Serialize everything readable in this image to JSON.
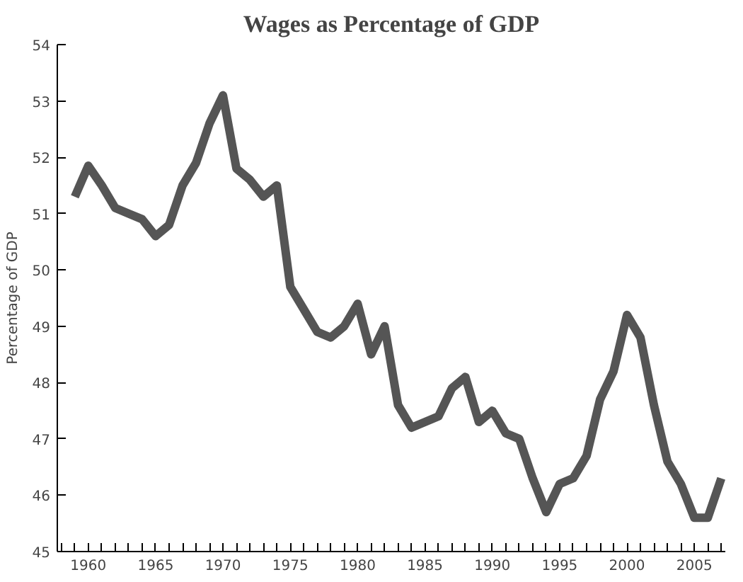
{
  "chart_data": {
    "type": "line",
    "title": "Wages as Percentage of GDP",
    "ylabel": "Percentage of GDP",
    "x": [
      1959,
      1960,
      1961,
      1962,
      1963,
      1964,
      1965,
      1966,
      1967,
      1968,
      1969,
      1970,
      1971,
      1972,
      1973,
      1974,
      1975,
      1976,
      1977,
      1978,
      1979,
      1980,
      1981,
      1982,
      1983,
      1984,
      1985,
      1986,
      1987,
      1988,
      1989,
      1990,
      1991,
      1992,
      1993,
      1994,
      1995,
      1996,
      1997,
      1998,
      1999,
      2000,
      2001,
      2002,
      2003,
      2004,
      2005,
      2006,
      2007
    ],
    "series": [
      {
        "color": "#555555",
        "values": [
          51.3,
          51.85,
          51.5,
          51.1,
          51.0,
          50.9,
          50.6,
          50.8,
          51.5,
          51.9,
          52.6,
          53.1,
          51.8,
          51.6,
          51.3,
          51.5,
          49.7,
          49.3,
          48.9,
          48.8,
          49.0,
          49.4,
          48.5,
          49.0,
          47.6,
          47.2,
          47.3,
          47.4,
          47.9,
          48.1,
          47.3,
          47.5,
          47.1,
          47.0,
          46.3,
          45.7,
          46.2,
          46.3,
          46.7,
          47.7,
          48.2,
          49.2,
          48.8,
          47.6,
          46.6,
          46.2,
          45.6,
          45.6,
          46.3
        ]
      }
    ],
    "xlim": [
      1957.7,
      2007.3
    ],
    "ylim": [
      45,
      54
    ],
    "xticks": [
      {
        "value": 1958,
        "label": null
      },
      {
        "value": 1959,
        "label": null
      },
      1960,
      {
        "value": 1961,
        "label": null
      },
      {
        "value": 1962,
        "label": null
      },
      {
        "value": 1963,
        "label": null
      },
      {
        "value": 1964,
        "label": null
      },
      1965,
      {
        "value": 1966,
        "label": null
      },
      {
        "value": 1967,
        "label": null
      },
      {
        "value": 1968,
        "label": null
      },
      {
        "value": 1969,
        "label": null
      },
      1970,
      {
        "value": 1971,
        "label": null
      },
      {
        "value": 1972,
        "label": null
      },
      {
        "value": 1973,
        "label": null
      },
      {
        "value": 1974,
        "label": null
      },
      1975,
      {
        "value": 1976,
        "label": null
      },
      {
        "value": 1977,
        "label": null
      },
      {
        "value": 1978,
        "label": null
      },
      {
        "value": 1979,
        "label": null
      },
      1980,
      {
        "value": 1981,
        "label": null
      },
      {
        "value": 1982,
        "label": null
      },
      {
        "value": 1983,
        "label": null
      },
      {
        "value": 1984,
        "label": null
      },
      1985,
      {
        "value": 1986,
        "label": null
      },
      {
        "value": 1987,
        "label": null
      },
      {
        "value": 1988,
        "label": null
      },
      {
        "value": 1989,
        "label": null
      },
      1990,
      {
        "value": 1991,
        "label": null
      },
      {
        "value": 1992,
        "label": null
      },
      {
        "value": 1993,
        "label": null
      },
      {
        "value": 1994,
        "label": null
      },
      1995,
      {
        "value": 1996,
        "label": null
      },
      {
        "value": 1997,
        "label": null
      },
      {
        "value": 1998,
        "label": null
      },
      {
        "value": 1999,
        "label": null
      },
      2000,
      {
        "value": 2001,
        "label": null
      },
      {
        "value": 2002,
        "label": null
      },
      {
        "value": 2003,
        "label": null
      },
      {
        "value": 2004,
        "label": null
      },
      2005,
      {
        "value": 2006,
        "label": null
      },
      {
        "value": 2007,
        "label": null
      }
    ],
    "yticks": [
      45,
      46,
      47,
      48,
      49,
      50,
      51,
      52,
      53,
      54
    ],
    "grid": false,
    "marker": "none",
    "line_style": "solid"
  }
}
